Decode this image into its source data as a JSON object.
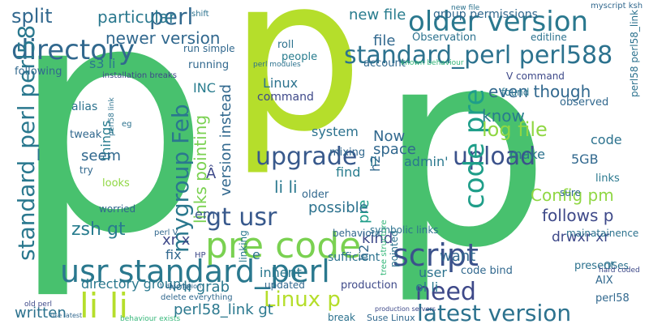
{
  "words": [
    "p",
    "p",
    "p",
    "older version",
    "directory",
    "standard_perl perl588",
    "usr standard_perl",
    "pre code",
    "script",
    "li li",
    "need",
    "latest version",
    "upload",
    "code pre",
    "upgrade",
    "gt usr",
    "Linux p",
    "log file",
    "know",
    "even though",
    "standard_perl perl58",
    "Config pm",
    "follows p",
    "drwxr xr",
    "zsh gt",
    "mygroup Feb",
    "perl",
    "split",
    "particular",
    "newer version",
    "new file",
    "file",
    "s3 li",
    "INC",
    "Linux",
    "command",
    "version instead",
    "links pointing",
    "system",
    "Now",
    "space",
    "ll",
    "admin'",
    "h2",
    "pre",
    "h2",
    "find",
    "li li",
    "older",
    "possible",
    "kind",
    "em",
    "xr x",
    "fix",
    "HP",
    "e",
    "sufficient",
    "inherit",
    "people",
    "roll",
    "group permissions",
    "myscript ksh",
    "editline",
    "V command",
    "account",
    "Observation",
    "mixing",
    "code",
    "5GB",
    "make",
    "links",
    "observed",
    "want",
    "user",
    "ol li",
    "code bind",
    "present",
    "AIX",
    "OSes",
    "perl58_link gt",
    "directory group",
    "written",
    "li grab",
    "production",
    "break",
    "Suse Linux",
    "perl58",
    "hard coded",
    "things",
    "seem",
    "alias",
    "tweak",
    "running",
    "perl58 perl58_link",
    "following",
    "installation breaks",
    "shift",
    "Â",
    "eg",
    "try",
    "looks",
    "worried",
    "Note",
    "updated",
    "linking",
    "symbolic links",
    "behaviour",
    "mainatainence",
    "sure",
    "pointed",
    "found",
    "run simple",
    "new file",
    "perl modules",
    "known behaviour",
    "delete everything",
    "perl V",
    "tree structure",
    "production servers",
    "1 description",
    "old perl",
    "use latest",
    "behaviour exists",
    "perl58 link"
  ]
}
